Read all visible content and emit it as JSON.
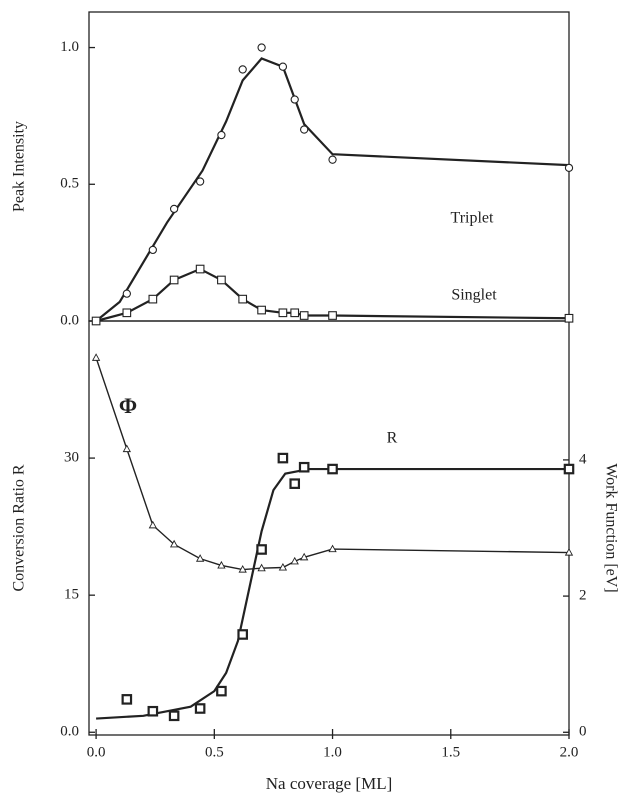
{
  "chart_data": [
    {
      "type": "line",
      "ylabel": "Peak Intensity",
      "xlim": [
        -0.03,
        2.0
      ],
      "ylim": [
        0,
        1.13
      ],
      "yticks": [
        {
          "value": 0,
          "label": "0.0"
        },
        0.5,
        {
          "value": 1,
          "label": "1.0"
        }
      ],
      "annotations": [
        "Triplet",
        "Singlet"
      ],
      "series": [
        {
          "name": "Triplet",
          "marker": "circle",
          "color": "#222",
          "x": [
            0,
            0.13,
            0.24,
            0.33,
            0.44,
            0.53,
            0.62,
            0.7,
            0.79,
            0.84,
            0.88,
            1.0,
            2.0
          ],
          "values": [
            0.0,
            0.1,
            0.26,
            0.41,
            0.51,
            0.68,
            0.92,
            1.0,
            0.93,
            0.81,
            0.7,
            0.59,
            0.56
          ],
          "fit": {
            "x": [
              0,
              0.1,
              0.3,
              0.45,
              0.55,
              0.62,
              0.7,
              0.79,
              0.88,
              1.0,
              2.0
            ],
            "values": [
              0,
              0.07,
              0.36,
              0.55,
              0.73,
              0.88,
              0.96,
              0.93,
              0.72,
              0.61,
              0.57
            ]
          }
        },
        {
          "name": "Singlet",
          "marker": "square",
          "color": "#222",
          "x": [
            0,
            0.13,
            0.24,
            0.33,
            0.44,
            0.53,
            0.62,
            0.7,
            0.79,
            0.84,
            0.88,
            1.0,
            2.0
          ],
          "values": [
            0.0,
            0.03,
            0.08,
            0.15,
            0.19,
            0.15,
            0.08,
            0.04,
            0.03,
            0.03,
            0.02,
            0.02,
            0.01
          ]
        }
      ]
    },
    {
      "type": "line",
      "xlabel": "Na coverage [ML]",
      "ylabel": "Conversion Ratio R",
      "y2label": "Work Function [eV]",
      "xlim": [
        -0.03,
        2.0
      ],
      "ylim": [
        -0.3,
        45
      ],
      "y2lim": [
        -0.04,
        6.04
      ],
      "xticks": [
        {
          "value": 0,
          "label": "0.0"
        },
        0.5,
        {
          "value": 1,
          "label": "1.0"
        },
        1.5,
        {
          "value": 2,
          "label": "2.0"
        }
      ],
      "yticks": [
        {
          "value": 0,
          "label": "0.0"
        },
        15,
        30
      ],
      "y2ticks": [
        0,
        2,
        4
      ],
      "annotations": [
        "R",
        "Φ"
      ],
      "series": [
        {
          "name": "R",
          "marker": "bigsquare",
          "color": "#222",
          "x": [
            0.13,
            0.24,
            0.33,
            0.44,
            0.53,
            0.62,
            0.7,
            0.79,
            0.84,
            0.88,
            1.0,
            2.0
          ],
          "values": [
            3.6,
            2.3,
            1.8,
            2.6,
            4.5,
            10.7,
            20,
            30,
            27.2,
            29,
            28.8,
            28.8
          ],
          "fit": {
            "x": [
              0,
              0.2,
              0.4,
              0.5,
              0.55,
              0.6,
              0.65,
              0.7,
              0.75,
              0.8,
              0.9,
              2.0
            ],
            "values": [
              1.5,
              1.8,
              2.8,
              4.5,
              6.5,
              10,
              16,
              22,
              26.5,
              28.3,
              28.8,
              28.8
            ]
          }
        },
        {
          "name": "Φ",
          "marker": "triangle",
          "axis": "y2",
          "color": "#222",
          "x": [
            0,
            0.13,
            0.24,
            0.33,
            0.44,
            0.53,
            0.62,
            0.7,
            0.79,
            0.84,
            0.88,
            1.0,
            2.0
          ],
          "values": [
            5.5,
            4.16,
            3.04,
            2.76,
            2.55,
            2.45,
            2.39,
            2.41,
            2.42,
            2.51,
            2.57,
            2.69,
            2.64
          ]
        }
      ]
    }
  ]
}
